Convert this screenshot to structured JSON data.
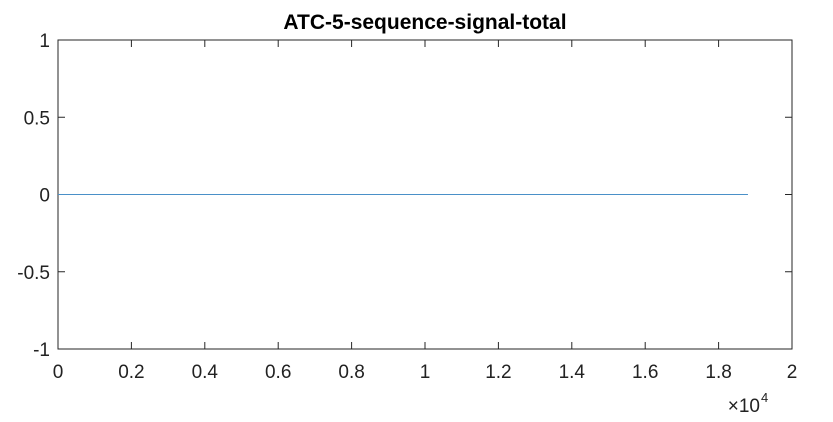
{
  "chart_data": {
    "type": "line",
    "title": "ATC-5-sequence-signal-total",
    "xlabel": "",
    "ylabel": "",
    "xlim": [
      0,
      20000
    ],
    "ylim": [
      -1,
      1
    ],
    "x_ticks": [
      0,
      2000,
      4000,
      6000,
      8000,
      10000,
      12000,
      14000,
      16000,
      18000,
      20000
    ],
    "x_tick_labels": [
      "0",
      "0.2",
      "0.4",
      "0.6",
      "0.8",
      "1",
      "1.2",
      "1.4",
      "1.6",
      "1.8",
      "2"
    ],
    "x_exponent_base": "×10",
    "x_exponent_power": "4",
    "y_ticks": [
      -1,
      -0.5,
      0,
      0.5,
      1
    ],
    "y_tick_labels": [
      "-1",
      "-0.5",
      "0",
      "0.5",
      "1"
    ],
    "grid": false,
    "series": [
      {
        "color": "#4a90c8",
        "x": [
          0,
          18800
        ],
        "values": [
          0,
          0
        ]
      }
    ]
  }
}
